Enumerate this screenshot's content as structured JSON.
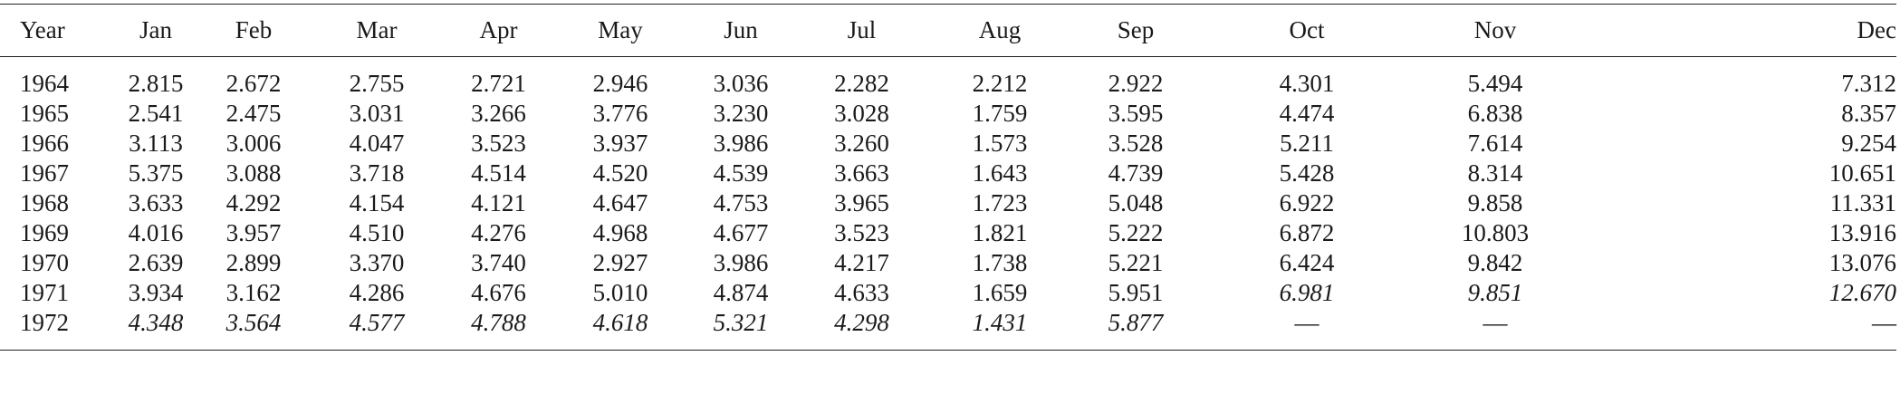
{
  "table": {
    "headers": [
      "Year",
      "Jan",
      "Feb",
      "Mar",
      "Apr",
      "May",
      "Jun",
      "Jul",
      "Aug",
      "Sep",
      "Oct",
      "Nov",
      "Dec"
    ],
    "rows": [
      {
        "year": "1964",
        "values": [
          "2.815",
          "2.672",
          "2.755",
          "2.721",
          "2.946",
          "3.036",
          "2.282",
          "2.212",
          "2.922",
          "4.301",
          "5.494",
          "7.312"
        ],
        "italic": [
          false,
          false,
          false,
          false,
          false,
          false,
          false,
          false,
          false,
          false,
          false,
          false
        ]
      },
      {
        "year": "1965",
        "values": [
          "2.541",
          "2.475",
          "3.031",
          "3.266",
          "3.776",
          "3.230",
          "3.028",
          "1.759",
          "3.595",
          "4.474",
          "6.838",
          "8.357"
        ],
        "italic": [
          false,
          false,
          false,
          false,
          false,
          false,
          false,
          false,
          false,
          false,
          false,
          false
        ]
      },
      {
        "year": "1966",
        "values": [
          "3.113",
          "3.006",
          "4.047",
          "3.523",
          "3.937",
          "3.986",
          "3.260",
          "1.573",
          "3.528",
          "5.211",
          "7.614",
          "9.254"
        ],
        "italic": [
          false,
          false,
          false,
          false,
          false,
          false,
          false,
          false,
          false,
          false,
          false,
          false
        ]
      },
      {
        "year": "1967",
        "values": [
          "5.375",
          "3.088",
          "3.718",
          "4.514",
          "4.520",
          "4.539",
          "3.663",
          "1.643",
          "4.739",
          "5.428",
          "8.314",
          "10.651"
        ],
        "italic": [
          false,
          false,
          false,
          false,
          false,
          false,
          false,
          false,
          false,
          false,
          false,
          false
        ]
      },
      {
        "year": "1968",
        "values": [
          "3.633",
          "4.292",
          "4.154",
          "4.121",
          "4.647",
          "4.753",
          "3.965",
          "1.723",
          "5.048",
          "6.922",
          "9.858",
          "11.331"
        ],
        "italic": [
          false,
          false,
          false,
          false,
          false,
          false,
          false,
          false,
          false,
          false,
          false,
          false
        ]
      },
      {
        "year": "1969",
        "values": [
          "4.016",
          "3.957",
          "4.510",
          "4.276",
          "4.968",
          "4.677",
          "3.523",
          "1.821",
          "5.222",
          "6.872",
          "10.803",
          "13.916"
        ],
        "italic": [
          false,
          false,
          false,
          false,
          false,
          false,
          false,
          false,
          false,
          false,
          false,
          false
        ]
      },
      {
        "year": "1970",
        "values": [
          "2.639",
          "2.899",
          "3.370",
          "3.740",
          "2.927",
          "3.986",
          "4.217",
          "1.738",
          "5.221",
          "6.424",
          "9.842",
          "13.076"
        ],
        "italic": [
          false,
          false,
          false,
          false,
          false,
          false,
          false,
          false,
          false,
          false,
          false,
          false
        ]
      },
      {
        "year": "1971",
        "values": [
          "3.934",
          "3.162",
          "4.286",
          "4.676",
          "5.010",
          "4.874",
          "4.633",
          "1.659",
          "5.951",
          "6.981",
          "9.851",
          "12.670"
        ],
        "italic": [
          false,
          false,
          false,
          false,
          false,
          false,
          false,
          false,
          false,
          true,
          true,
          true
        ]
      },
      {
        "year": "1972",
        "values": [
          "4.348",
          "3.564",
          "4.577",
          "4.788",
          "4.618",
          "5.321",
          "4.298",
          "1.431",
          "5.877",
          "—",
          "—",
          "—"
        ],
        "italic": [
          true,
          true,
          true,
          true,
          true,
          true,
          true,
          true,
          true,
          false,
          false,
          false
        ]
      }
    ]
  }
}
